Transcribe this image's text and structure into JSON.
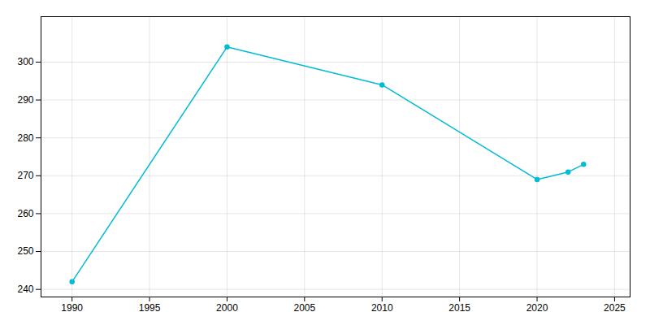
{
  "chart_data": {
    "type": "line",
    "x": [
      1990,
      2000,
      2010,
      2020,
      2022,
      2023
    ],
    "values": [
      242,
      304,
      294,
      269,
      271,
      273
    ],
    "color": "#00BCD4",
    "marker": "circle",
    "xlim": [
      1988,
      2026
    ],
    "ylim": [
      238,
      312
    ],
    "xticks": [
      1990,
      1995,
      2000,
      2005,
      2010,
      2015,
      2020,
      2025
    ],
    "yticks": [
      240,
      250,
      260,
      270,
      280,
      290,
      300
    ],
    "grid": true
  }
}
